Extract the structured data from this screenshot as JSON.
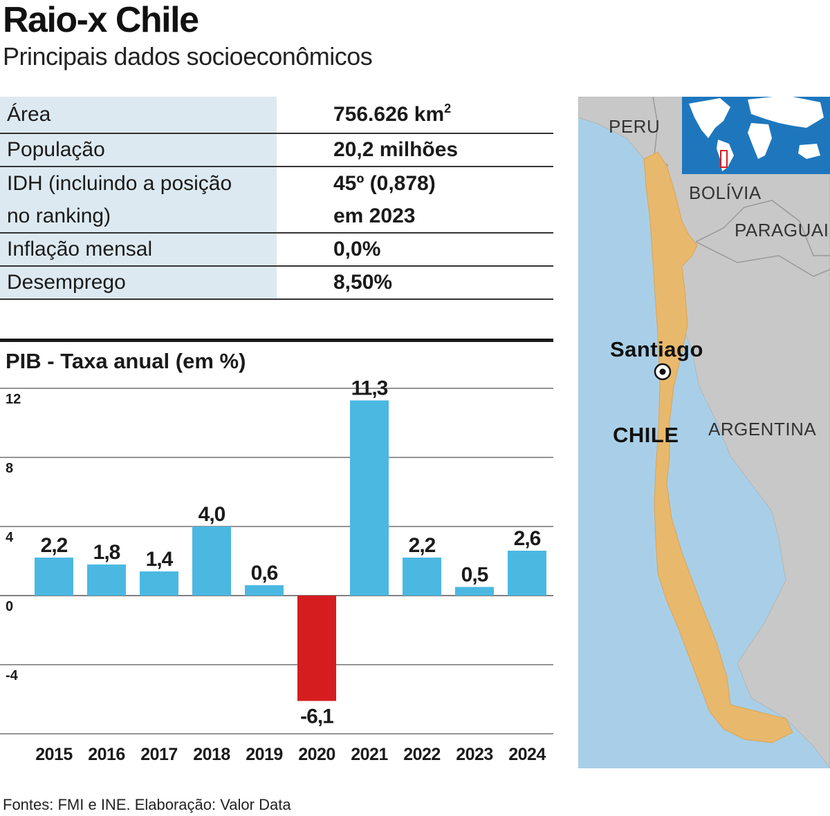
{
  "header": {
    "title": "Raio-x Chile",
    "subtitle": "Principais dados socioeconômicos"
  },
  "stats": {
    "area_label": "Área",
    "area_value": "756.626 km",
    "area_unit_sup": "2",
    "population_label": "População",
    "population_value": "20,2 milhões",
    "idh_label_line1": "IDH (incluindo a posição",
    "idh_label_line2": "no ranking)",
    "idh_value_line1": "45º (0,878)",
    "idh_value_line2": "em 2023",
    "inflation_label": "Inflação mensal",
    "inflation_value": "0,0%",
    "unemployment_label": "Desemprego",
    "unemployment_value": "8,50%"
  },
  "chart_data": {
    "type": "bar",
    "title": "PIB - Taxa anual (em %)",
    "categories": [
      "2015",
      "2016",
      "2017",
      "2018",
      "2019",
      "2020",
      "2021",
      "2022",
      "2023",
      "2024"
    ],
    "values": [
      2.2,
      1.8,
      1.4,
      4.0,
      0.6,
      -6.1,
      11.3,
      2.2,
      0.5,
      2.6
    ],
    "value_labels": [
      "2,2",
      "1,8",
      "1,4",
      "4,0",
      "0,6",
      "-6,1",
      "11,3",
      "2,2",
      "0,5",
      "2,6"
    ],
    "yticks": [
      12,
      8,
      4,
      0,
      -4
    ],
    "ytick_labels": [
      "12",
      "8",
      "4",
      "0",
      "-4"
    ],
    "ylim": [
      -8,
      12
    ],
    "xlabel": "",
    "ylabel": "",
    "positive_color": "#4bb8e2",
    "negative_color": "#d51d1f"
  },
  "map": {
    "labels": {
      "peru": "PERU",
      "bolivia": "BOLÍVIA",
      "paraguai": "PARAGUAI",
      "santiago": "Santiago",
      "chile": "CHILE",
      "argentina": "ARGENTINA"
    },
    "colors": {
      "ocean": "#a9cfe8",
      "land": "#c8c8c8",
      "chile": "#e8b86d",
      "inset_ocean": "#1e77bd",
      "inset_land": "#ffffff",
      "marker": "#d51d1f"
    }
  },
  "footer": {
    "source": "Fontes: FMI e INE. Elaboração: Valor Data"
  }
}
